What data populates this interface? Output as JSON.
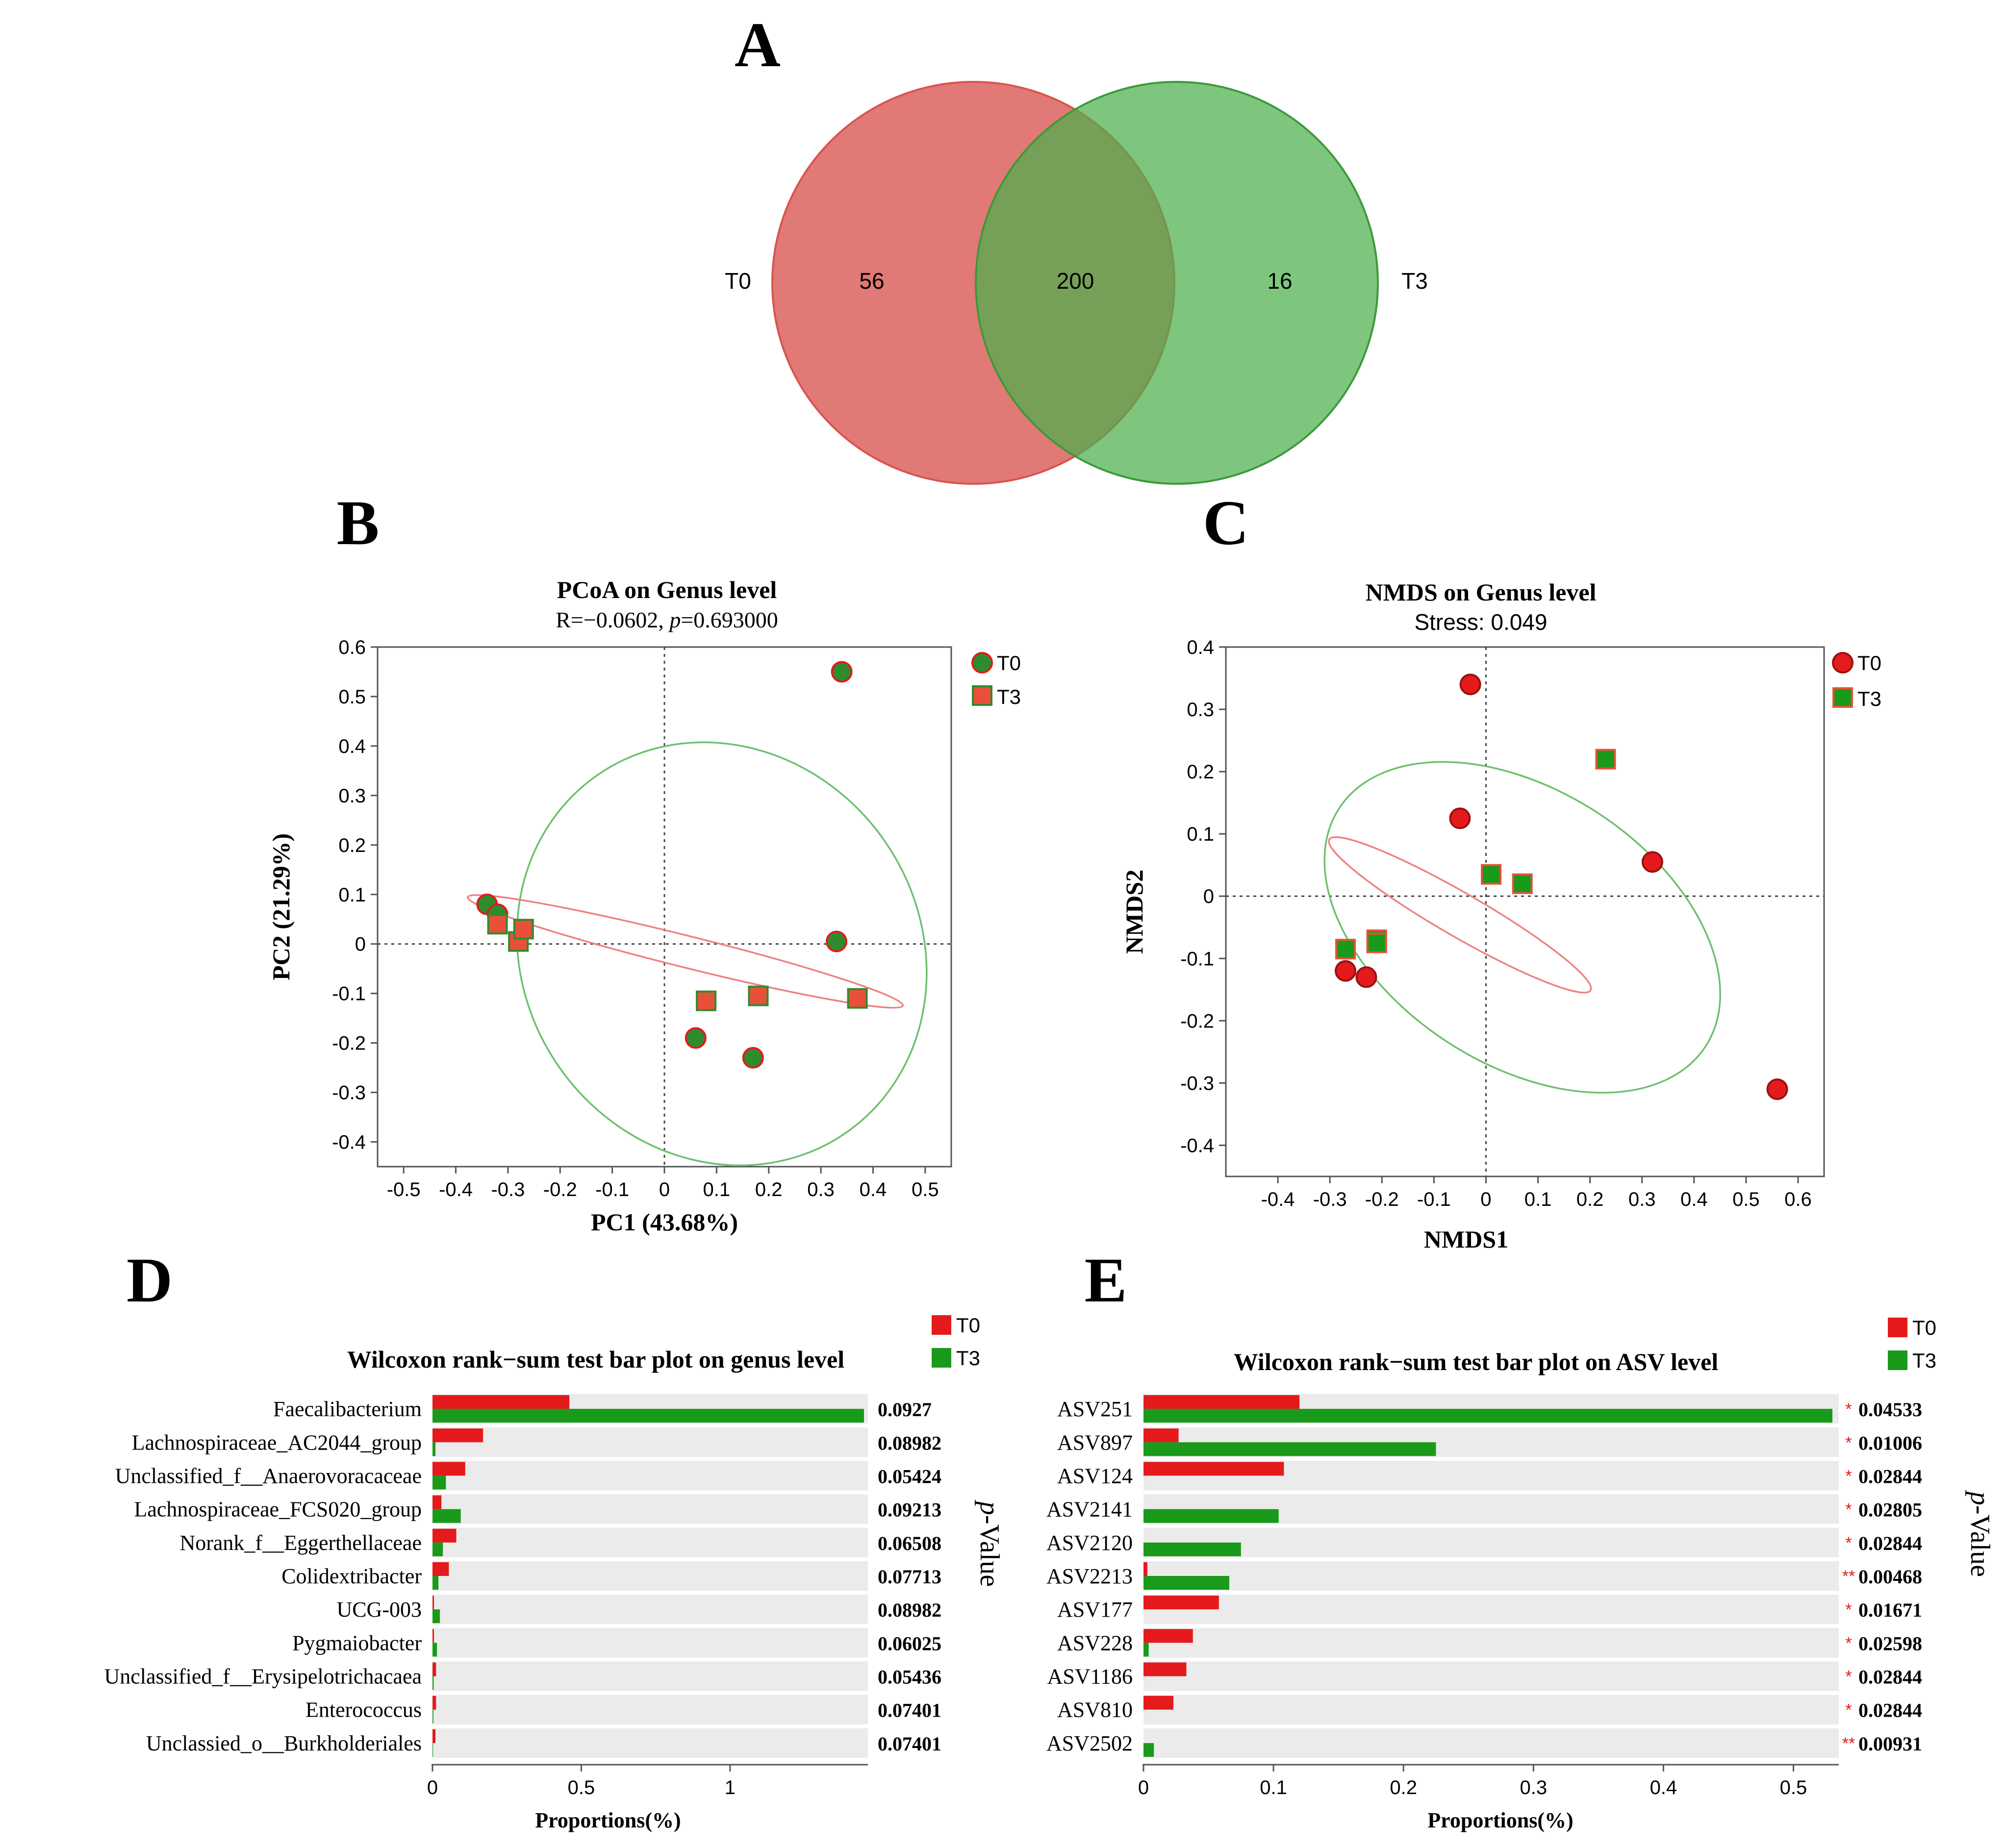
{
  "panel_letters": {
    "a": "A",
    "b": "B",
    "c": "C",
    "d": "D",
    "e": "E"
  },
  "colors": {
    "red": "#e41a1c",
    "green": "#1a9a1a",
    "venn_red": "#d9534f",
    "venn_green": "#4cae4c",
    "bar_bg": "#ebebeb"
  },
  "chart_data": [
    {
      "id": "A",
      "type": "venn",
      "sets": [
        {
          "name": "T0",
          "only": 56,
          "color": "#d9534f"
        },
        {
          "name": "T3",
          "only": 16,
          "color": "#4cae4c"
        }
      ],
      "shared": 200,
      "labels": {
        "left_set": "T0",
        "right_set": "T3",
        "left_count": "56",
        "shared_count": "200",
        "right_count": "16"
      }
    },
    {
      "id": "B",
      "type": "scatter",
      "title": "PCoA on Genus level",
      "subtitle_prefix": "R=−0.0602, ",
      "subtitle_p_symbol": "p",
      "subtitle_suffix": "=0.693000",
      "xlabel": "PC1 (43.68%)",
      "ylabel": "PC2 (21.29%)",
      "xlim": [
        -0.55,
        0.55
      ],
      "ylim": [
        -0.45,
        0.6
      ],
      "xticks": [
        -0.5,
        -0.4,
        -0.3,
        -0.2,
        -0.1,
        0,
        0.1,
        0.2,
        0.3,
        0.4,
        0.5
      ],
      "yticks": [
        -0.4,
        -0.3,
        -0.2,
        -0.1,
        0,
        0.1,
        0.2,
        0.3,
        0.4,
        0.5,
        0.6
      ],
      "legend_position": "top-right",
      "series": [
        {
          "name": "T0",
          "marker": "circle",
          "fill": "#2e8b2e",
          "edge": "#e41a1c",
          "x": [
            -0.34,
            -0.32,
            0.33,
            0.06,
            0.17,
            0.34
          ],
          "y": [
            0.08,
            0.06,
            0.005,
            -0.19,
            -0.23,
            0.55
          ],
          "ellipse": {
            "cx": 0.11,
            "cy": -0.02,
            "rx": 0.38,
            "ry": 0.44,
            "angle_deg": 35,
            "color": "#6dbf6d"
          }
        },
        {
          "name": "T3",
          "marker": "square",
          "fill": "#e8503a",
          "edge": "#2e8b2e",
          "x": [
            -0.32,
            -0.28,
            -0.27,
            0.08,
            0.18,
            0.37
          ],
          "y": [
            0.04,
            0.005,
            0.03,
            -0.115,
            -0.105,
            -0.11
          ],
          "ellipse": {
            "cx": 0.04,
            "cy": -0.015,
            "rx": 0.43,
            "ry": 0.032,
            "angle_deg": -14,
            "color": "#f08080"
          }
        }
      ]
    },
    {
      "id": "C",
      "type": "scatter",
      "title": "NMDS on Genus level",
      "subtitle": "Stress: 0.049",
      "xlabel": "NMDS1",
      "ylabel": "NMDS2",
      "xlim": [
        -0.5,
        0.65
      ],
      "ylim": [
        -0.45,
        0.4
      ],
      "xticks": [
        -0.4,
        -0.3,
        -0.2,
        -0.1,
        0,
        0.1,
        0.2,
        0.3,
        0.4,
        0.5,
        0.6
      ],
      "yticks": [
        -0.4,
        -0.3,
        -0.2,
        -0.1,
        0,
        0.1,
        0.2,
        0.3,
        0.4
      ],
      "legend_position": "top-right",
      "series": [
        {
          "name": "T0",
          "marker": "circle",
          "fill": "#e41a1c",
          "edge": "#9a1010",
          "x": [
            -0.03,
            -0.05,
            0.32,
            -0.27,
            -0.23,
            0.56
          ],
          "y": [
            0.34,
            0.125,
            0.055,
            -0.12,
            -0.13,
            -0.31
          ],
          "ellipse": {
            "cx": 0.07,
            "cy": -0.05,
            "rx": 0.42,
            "ry": 0.22,
            "angle_deg": -33,
            "color": "#6dbf6d"
          }
        },
        {
          "name": "T3",
          "marker": "square",
          "fill": "#1a9a1a",
          "edge": "#e8503a",
          "x": [
            0.23,
            0.01,
            0.07,
            -0.27,
            -0.21,
            -0.21
          ],
          "y": [
            0.22,
            0.035,
            0.02,
            -0.085,
            -0.07,
            -0.075
          ],
          "ellipse": {
            "cx": -0.05,
            "cy": -0.03,
            "rx": 0.29,
            "ry": 0.035,
            "angle_deg": -30,
            "color": "#f08080"
          }
        }
      ]
    },
    {
      "id": "D",
      "type": "bar",
      "orientation": "horizontal",
      "title": "Wilcoxon rank−sum test bar plot on genus level",
      "xlabel": "Proportions(%)",
      "side_label_p": "p",
      "side_label_rest": "-Value",
      "xlim": [
        0,
        1.45
      ],
      "xticks": [
        0,
        0.5,
        1
      ],
      "xtick_labels": [
        "0",
        "0.5",
        "1"
      ],
      "legend": [
        "T0",
        "T3"
      ],
      "categories": [
        "Faecalibacterium",
        "Lachnospiraceae_AC2044_group",
        "Unclassified_f__Anaerovoracaceae",
        "Lachnospiraceae_FCS020_group",
        "Norank_f__Eggerthellaceae",
        "Colidextribacter",
        "UCG-003",
        "Pygmaiobacter",
        "Unclassified_f__Erysipelotrichacaea",
        "Enterococcus",
        "Unclassied_o__Burkholderiales"
      ],
      "series": [
        {
          "name": "T0",
          "color": "#e41a1c",
          "values": [
            0.46,
            0.17,
            0.11,
            0.03,
            0.08,
            0.055,
            0.005,
            0.005,
            0.012,
            0.012,
            0.01
          ]
        },
        {
          "name": "T3",
          "color": "#1a9a1a",
          "values": [
            1.45,
            0.01,
            0.045,
            0.095,
            0.035,
            0.02,
            0.025,
            0.015,
            0.004,
            0.003,
            0.002
          ]
        }
      ],
      "p_values": [
        "0.0927",
        "0.08982",
        "0.05424",
        "0.09213",
        "0.06508",
        "0.07713",
        "0.08982",
        "0.06025",
        "0.05436",
        "0.07401",
        "0.07401"
      ],
      "stars": [
        "",
        "",
        "",
        "",
        "",
        "",
        "",
        "",
        "",
        "",
        ""
      ]
    },
    {
      "id": "E",
      "type": "bar",
      "orientation": "horizontal",
      "title": "Wilcoxon rank−sum test bar plot on ASV level",
      "xlabel": "Proportions(%)",
      "side_label_p": "p",
      "side_label_rest": "-Value",
      "xlim": [
        0,
        0.53
      ],
      "xticks": [
        0,
        0.1,
        0.2,
        0.3,
        0.4,
        0.5
      ],
      "xtick_labels": [
        "0",
        "0.1",
        "0.2",
        "0.3",
        "0.4",
        "0.5"
      ],
      "legend": [
        "T0",
        "T3"
      ],
      "categories": [
        "ASV251",
        "ASV897",
        "ASV124",
        "ASV2141",
        "ASV2120",
        "ASV2213",
        "ASV177",
        "ASV228",
        "ASV1186",
        "ASV810",
        "ASV2502"
      ],
      "series": [
        {
          "name": "T0",
          "color": "#e41a1c",
          "values": [
            0.12,
            0.027,
            0.108,
            0,
            0,
            0.003,
            0.058,
            0.038,
            0.033,
            0.023,
            0
          ]
        },
        {
          "name": "T3",
          "color": "#1a9a1a",
          "values": [
            0.53,
            0.225,
            0,
            0.104,
            0.075,
            0.066,
            0,
            0.004,
            0,
            0,
            0.008
          ]
        }
      ],
      "p_values": [
        "0.04533",
        "0.01006",
        "0.02844",
        "0.02805",
        "0.02844",
        "0.00468",
        "0.01671",
        "0.02598",
        "0.02844",
        "0.02844",
        "0.00931"
      ],
      "stars": [
        "*",
        "*",
        "*",
        "*",
        "*",
        "**",
        "*",
        "*",
        "*",
        "*",
        "**"
      ]
    }
  ]
}
